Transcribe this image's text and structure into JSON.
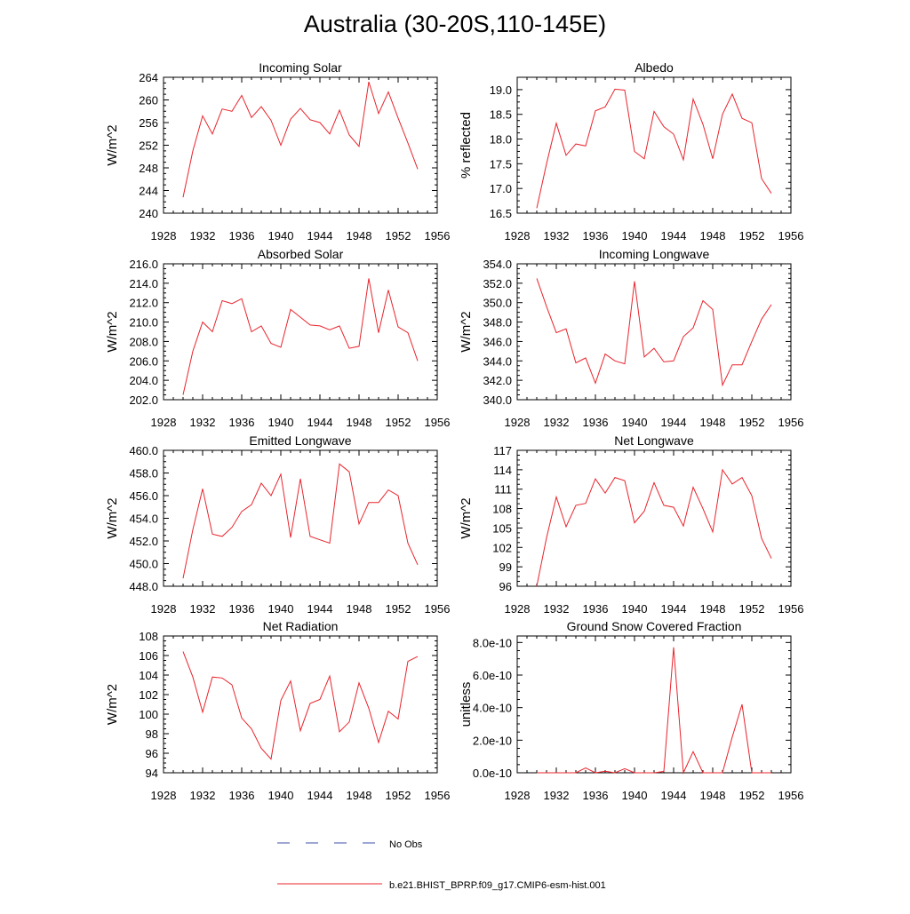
{
  "figure": {
    "title": "Australia (30-20S,110-145E)",
    "legend": [
      {
        "label": "No Obs",
        "color": "#3f4fa8",
        "style": "dashed"
      },
      {
        "label": "b.e21.BHIST_BPRP.f09_g17.CMIP6-esm-hist.001",
        "color": "#e8242c",
        "style": "solid"
      }
    ],
    "line_color": "#e8242c"
  },
  "chart_data": [
    {
      "type": "line",
      "title": "Incoming Solar",
      "ylabel": "W/m^2",
      "xlim": [
        1928,
        1956
      ],
      "xticks": [
        "1928",
        "1932",
        "1936",
        "1940",
        "1944",
        "1948",
        "1952",
        "1956"
      ],
      "ylim": [
        240,
        264
      ],
      "yticks": [
        "240",
        "244",
        "248",
        "252",
        "256",
        "260",
        "264"
      ],
      "x": [
        1930,
        1931,
        1932,
        1933,
        1934,
        1935,
        1936,
        1937,
        1938,
        1939,
        1940,
        1941,
        1942,
        1943,
        1944,
        1945,
        1946,
        1947,
        1948,
        1949,
        1950,
        1951,
        1952,
        1953,
        1954
      ],
      "y": [
        242.8,
        251.0,
        257.2,
        254.0,
        258.4,
        258.0,
        260.8,
        256.9,
        258.8,
        256.4,
        252.0,
        256.6,
        258.5,
        256.5,
        256.0,
        254.0,
        258.2,
        253.8,
        251.8,
        263.2,
        257.6,
        261.4,
        256.8,
        252.4,
        247.8
      ]
    },
    {
      "type": "line",
      "title": "Albedo",
      "ylabel": "% reflected",
      "xlim": [
        1928,
        1956
      ],
      "xticks": [
        "1928",
        "1932",
        "1936",
        "1940",
        "1944",
        "1948",
        "1952",
        "1956"
      ],
      "ylim": [
        16.5,
        19.25
      ],
      "yticks": [
        "16.5",
        "17.0",
        "17.5",
        "18.0",
        "18.5",
        "19.0"
      ],
      "x": [
        1930,
        1931,
        1932,
        1933,
        1934,
        1935,
        1936,
        1937,
        1938,
        1939,
        1940,
        1941,
        1942,
        1943,
        1944,
        1945,
        1946,
        1947,
        1948,
        1949,
        1950,
        1951,
        1952,
        1953,
        1954
      ],
      "y": [
        16.6,
        17.5,
        18.32,
        17.67,
        17.9,
        17.86,
        18.57,
        18.65,
        19.01,
        18.99,
        17.75,
        17.6,
        18.56,
        18.25,
        18.1,
        17.58,
        18.81,
        18.3,
        17.6,
        18.5,
        18.91,
        18.42,
        18.33,
        17.2,
        16.9
      ]
    },
    {
      "type": "line",
      "title": "Absorbed Solar",
      "ylabel": "W/m^2",
      "xlim": [
        1928,
        1956
      ],
      "xticks": [
        "1928",
        "1932",
        "1936",
        "1940",
        "1944",
        "1948",
        "1952",
        "1956"
      ],
      "ylim": [
        202.0,
        216.0
      ],
      "yticks": [
        "202.0",
        "204.0",
        "206.0",
        "208.0",
        "210.0",
        "212.0",
        "214.0",
        "216.0"
      ],
      "x": [
        1930,
        1931,
        1932,
        1933,
        1934,
        1935,
        1936,
        1937,
        1938,
        1939,
        1940,
        1941,
        1942,
        1943,
        1944,
        1945,
        1946,
        1947,
        1948,
        1949,
        1950,
        1951,
        1952,
        1953,
        1954
      ],
      "y": [
        202.5,
        207.0,
        210.0,
        209.0,
        212.2,
        211.9,
        212.4,
        209.0,
        209.6,
        207.8,
        207.4,
        211.3,
        210.5,
        209.7,
        209.6,
        209.2,
        209.6,
        207.3,
        207.5,
        214.5,
        208.9,
        213.3,
        209.5,
        208.9,
        206.0
      ]
    },
    {
      "type": "line",
      "title": "Incoming Longwave",
      "ylabel": "W/m^2",
      "xlim": [
        1928,
        1956
      ],
      "xticks": [
        "1928",
        "1932",
        "1936",
        "1940",
        "1944",
        "1948",
        "1952",
        "1956"
      ],
      "ylim": [
        340.0,
        354.0
      ],
      "yticks": [
        "340.0",
        "342.0",
        "344.0",
        "346.0",
        "348.0",
        "350.0",
        "352.0",
        "354.0"
      ],
      "x": [
        1930,
        1931,
        1932,
        1933,
        1934,
        1935,
        1936,
        1937,
        1938,
        1939,
        1940,
        1941,
        1942,
        1943,
        1944,
        1945,
        1946,
        1947,
        1948,
        1949,
        1950,
        1951,
        1952,
        1953,
        1954
      ],
      "y": [
        352.5,
        349.6,
        346.9,
        347.3,
        343.8,
        344.3,
        341.7,
        344.7,
        344.0,
        343.7,
        352.2,
        344.4,
        345.3,
        343.9,
        344.0,
        346.5,
        347.4,
        350.2,
        349.3,
        341.5,
        343.6,
        343.6,
        346.0,
        348.3,
        349.8
      ]
    },
    {
      "type": "line",
      "title": "Emitted Longwave",
      "ylabel": "W/m^2",
      "xlim": [
        1928,
        1956
      ],
      "xticks": [
        "1928",
        "1932",
        "1936",
        "1940",
        "1944",
        "1948",
        "1952",
        "1956"
      ],
      "ylim": [
        448.0,
        460.0
      ],
      "yticks": [
        "448.0",
        "450.0",
        "452.0",
        "454.0",
        "456.0",
        "458.0",
        "460.0"
      ],
      "x": [
        1930,
        1931,
        1932,
        1933,
        1934,
        1935,
        1936,
        1937,
        1938,
        1939,
        1940,
        1941,
        1942,
        1943,
        1944,
        1945,
        1946,
        1947,
        1948,
        1949,
        1950,
        1951,
        1952,
        1953,
        1954
      ],
      "y": [
        448.7,
        453.0,
        456.6,
        452.6,
        452.4,
        453.2,
        454.6,
        455.2,
        457.1,
        456.0,
        457.9,
        452.3,
        457.5,
        452.4,
        452.1,
        451.8,
        458.8,
        458.1,
        453.5,
        455.4,
        455.4,
        456.5,
        456.0,
        451.8,
        449.9
      ]
    },
    {
      "type": "line",
      "title": "Net Longwave",
      "ylabel": "W/m^2",
      "xlim": [
        1928,
        1956
      ],
      "xticks": [
        "1928",
        "1932",
        "1936",
        "1940",
        "1944",
        "1948",
        "1952",
        "1956"
      ],
      "ylim": [
        96,
        117
      ],
      "yticks": [
        "96",
        "99",
        "102",
        "105",
        "108",
        "111",
        "114",
        "117"
      ],
      "x": [
        1930,
        1931,
        1932,
        1933,
        1934,
        1935,
        1936,
        1937,
        1938,
        1939,
        1940,
        1941,
        1942,
        1943,
        1944,
        1945,
        1946,
        1947,
        1948,
        1949,
        1950,
        1951,
        1952,
        1953,
        1954
      ],
      "y": [
        96.0,
        103.5,
        109.8,
        105.2,
        108.5,
        108.8,
        112.6,
        110.4,
        112.8,
        112.3,
        105.8,
        107.6,
        112.0,
        108.5,
        108.2,
        105.3,
        111.3,
        108.0,
        104.4,
        114.0,
        111.8,
        112.8,
        110.0,
        103.4,
        100.3
      ]
    },
    {
      "type": "line",
      "title": "Net Radiation",
      "ylabel": "W/m^2",
      "xlim": [
        1928,
        1956
      ],
      "xticks": [
        "1928",
        "1932",
        "1936",
        "1940",
        "1944",
        "1948",
        "1952",
        "1956"
      ],
      "ylim": [
        94,
        108
      ],
      "yticks": [
        "94",
        "96",
        "98",
        "100",
        "102",
        "104",
        "106",
        "108"
      ],
      "x": [
        1930,
        1931,
        1932,
        1933,
        1934,
        1935,
        1936,
        1937,
        1938,
        1939,
        1940,
        1941,
        1942,
        1943,
        1944,
        1945,
        1946,
        1947,
        1948,
        1949,
        1950,
        1951,
        1952,
        1953,
        1954
      ],
      "y": [
        106.4,
        103.8,
        100.2,
        103.8,
        103.7,
        103.0,
        99.6,
        98.5,
        96.5,
        95.4,
        101.4,
        103.4,
        98.3,
        101.1,
        101.5,
        103.9,
        98.2,
        99.2,
        103.2,
        100.6,
        97.1,
        100.3,
        99.5,
        105.4,
        105.9
      ]
    },
    {
      "type": "line",
      "title": "Ground Snow Covered Fraction",
      "ylabel": "unitless",
      "xlim": [
        1928,
        1956
      ],
      "xticks": [
        "1928",
        "1932",
        "1936",
        "1940",
        "1944",
        "1948",
        "1952",
        "1956"
      ],
      "ylim": [
        0,
        8.4e-10
      ],
      "yticks": [
        "0.0e-10",
        "2.0e-10",
        "4.0e-10",
        "6.0e-10",
        "8.0e-10"
      ],
      "ytick_values": [
        0,
        2e-10,
        4e-10,
        6e-10,
        8e-10
      ],
      "x": [
        1930,
        1931,
        1932,
        1933,
        1934,
        1935,
        1936,
        1937,
        1938,
        1939,
        1940,
        1941,
        1942,
        1943,
        1944,
        1945,
        1946,
        1947,
        1948,
        1949,
        1950,
        1951,
        1952,
        1953,
        1954
      ],
      "y": [
        0,
        0,
        0,
        0,
        0,
        3e-11,
        0,
        1e-11,
        0,
        2.5e-11,
        0,
        0,
        0,
        8e-12,
        7.7e-10,
        0,
        1.3e-10,
        0,
        0,
        0,
        2.2e-10,
        4.2e-10,
        0,
        0,
        0
      ]
    }
  ]
}
